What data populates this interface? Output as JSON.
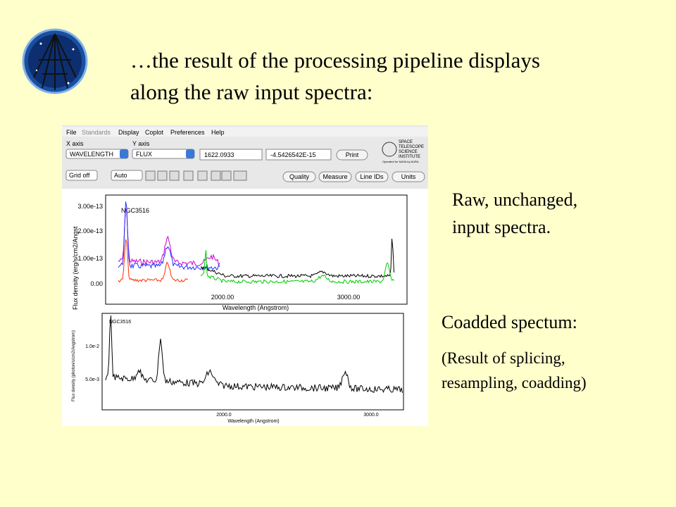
{
  "slide": {
    "title_lines": [
      "…the result of the processing pipeline displays",
      "along the raw input spectra:"
    ],
    "raw_note": [
      "Raw, unchanged,",
      "input spectra."
    ],
    "coadd_title": "Coadded spectum:",
    "coadd_note": [
      "(Result of splicing,",
      "resampling, coadding)"
    ]
  },
  "app": {
    "menu": [
      "File",
      "Standards",
      "Display",
      "Coplot",
      "Preferences",
      "Help"
    ],
    "x_axis_label": "X axis",
    "y_axis_label": "Y axis",
    "x_select": "WAVELENGTH",
    "y_select": "FLUX",
    "x_value": "1622.0933",
    "y_value": "-4.5426542E-15",
    "print": "Print",
    "logo_text": [
      "SPACE",
      "TELESCOPE",
      "SCIENCE",
      "INSTITUTE",
      "Operated for NASA by AURA"
    ],
    "grid": "Grid off",
    "auto": "Auto",
    "buttons": [
      "Quality",
      "Measure",
      "Line IDs",
      "Units"
    ]
  },
  "plot1": {
    "object": "NGC3516",
    "y_label": "Flux density (erg/s/cm2/Angst",
    "x_label": "Wavelength (Angstrom)",
    "yticks": [
      "3.00e-13",
      "2.00e-13",
      "1.00e-13",
      "0.00"
    ],
    "xticks": [
      "2000.00",
      "3000.00"
    ]
  },
  "plot2": {
    "object": "NGC3516",
    "y_label": "Flux density (photon/s/cm2/Angstrom)",
    "x_label": "Wavelength (Angstrom)",
    "yticks": [
      "1.0e-2",
      "5.0e-3"
    ],
    "xticks": [
      "2000.0",
      "3000.0"
    ]
  }
}
